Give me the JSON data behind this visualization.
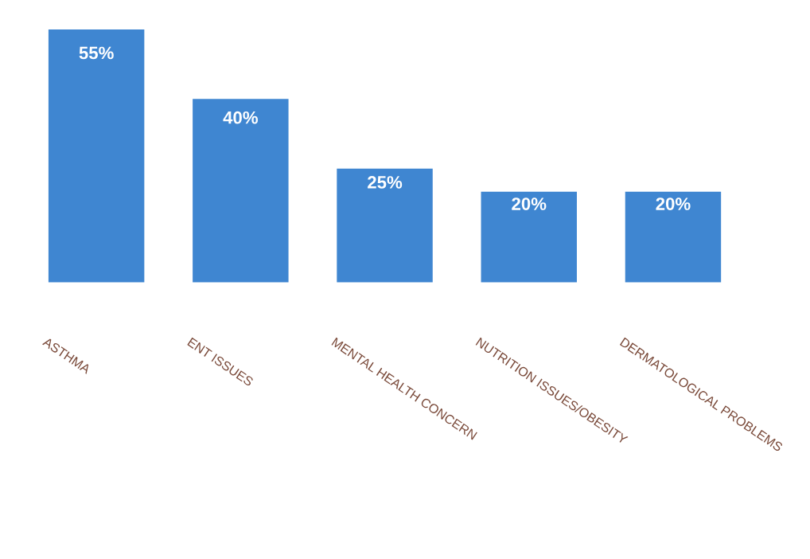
{
  "chart_data": {
    "type": "bar",
    "categories": [
      "ASTHMA",
      "ENT ISSUES",
      "MENTAL HEALTH CONCERN",
      "NUTRITION ISSUES/OBESITY",
      "DERMATOLOGICAL PROBLEMS"
    ],
    "values": [
      55,
      40,
      25,
      20,
      20
    ],
    "value_labels": [
      "55%",
      "40%",
      "25%",
      "20%",
      "20%"
    ],
    "color": "#3f86d1",
    "legend": false,
    "grid": false
  }
}
